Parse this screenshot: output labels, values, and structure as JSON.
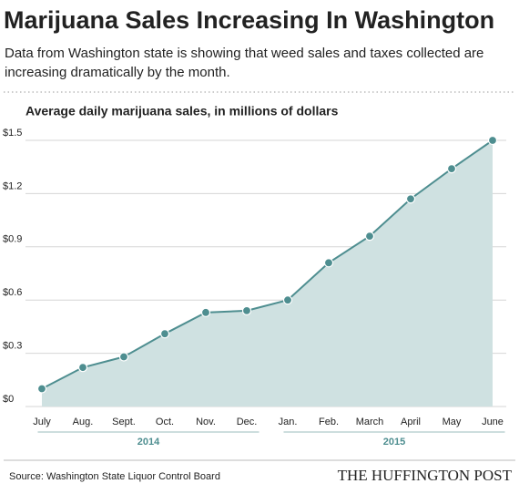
{
  "chart_data": {
    "type": "area",
    "title": "Marijuana Sales Increasing In Washington",
    "subtitle_lines": [
      "Data from Washington state is showing that weed sales and taxes collected are",
      "increasing dramatically by the month."
    ],
    "chart_heading": "Average daily marijuana sales, in millions of dollars",
    "categories": [
      "July",
      "Aug.",
      "Sept.",
      "Oct.",
      "Nov.",
      "Dec.",
      "Jan.",
      "Feb.",
      "March",
      "April",
      "May",
      "June"
    ],
    "x_group_labels": [
      "2014",
      "2015"
    ],
    "values": [
      0.1,
      0.22,
      0.28,
      0.41,
      0.53,
      0.54,
      0.6,
      0.81,
      0.96,
      1.17,
      1.34,
      1.5
    ],
    "color": "#4e8e90",
    "fill_color": "#cfe1e1",
    "ylim": [
      0,
      1.5
    ],
    "yticks": [
      {
        "value": 0,
        "label": "$0"
      },
      {
        "value": 0.3,
        "label": "$0.3"
      },
      {
        "value": 0.6,
        "label": "$0.6"
      },
      {
        "value": 0.9,
        "label": "$0.9"
      },
      {
        "value": 1.2,
        "label": "$1.2"
      },
      {
        "value": 1.5,
        "label": "$1.5"
      }
    ],
    "grid": true,
    "source": "Source: Washington State Liquor Control Board",
    "brand": "THE HUFFINGTON POST"
  }
}
